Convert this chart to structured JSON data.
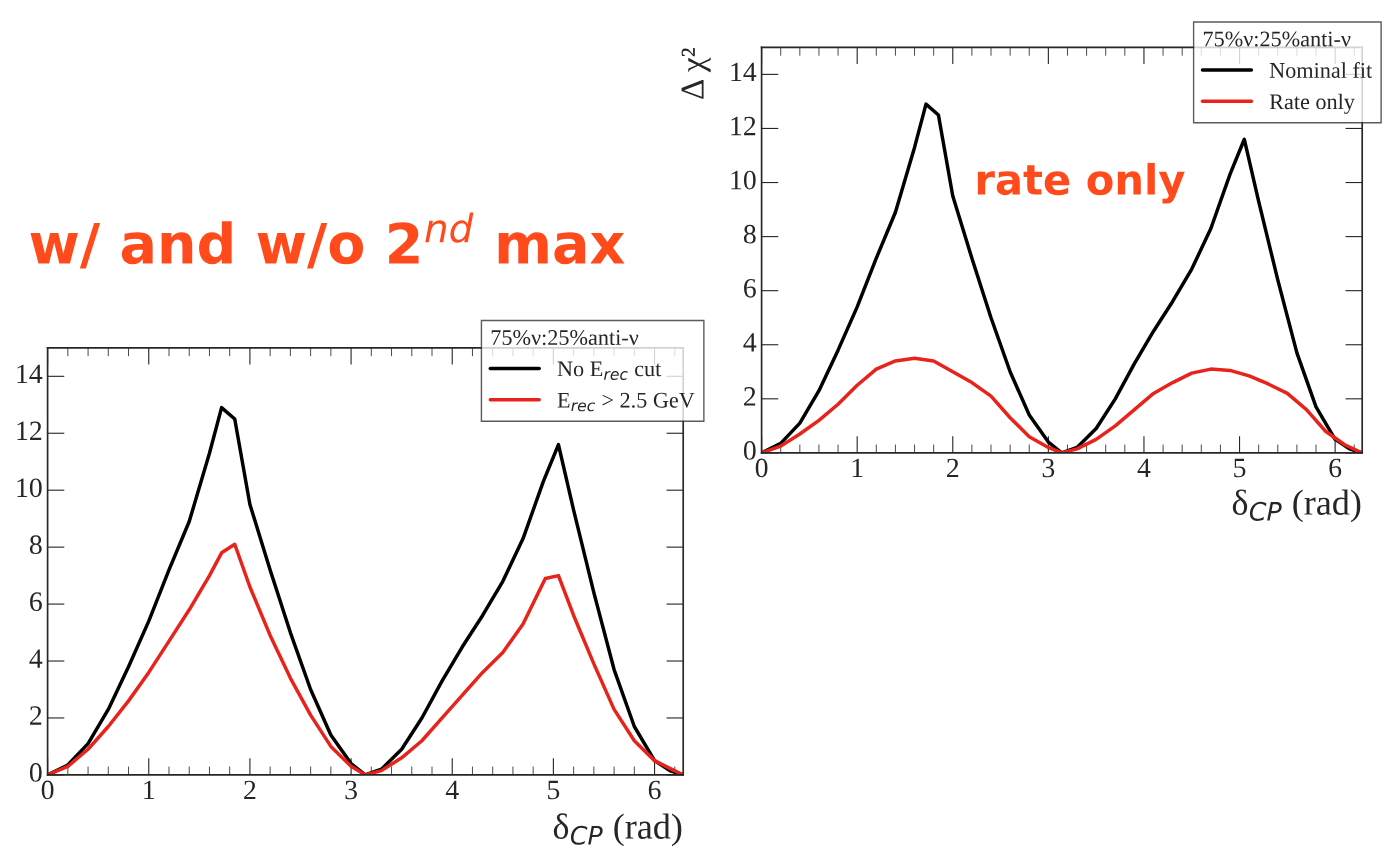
{
  "chart_data": [
    {
      "type": "line",
      "title": "w/ and w/o 2$^{nd}$ max",
      "xlabel": "δ$_{CP}$ (rad)",
      "legend_title": "75%ν:25%anti-ν",
      "legend": "top right",
      "xlim": [
        0,
        6.2832
      ],
      "xticks": [
        0,
        1,
        2,
        3,
        4,
        5,
        6
      ],
      "ylim": [
        0,
        15
      ],
      "yticks": [
        0,
        2,
        4,
        6,
        8,
        10,
        12,
        14
      ],
      "grid": false,
      "series": [
        {
          "name": "No E$_{rec}$ cut",
          "color": "#000000",
          "x": [
            0,
            0.2,
            0.4,
            0.6,
            0.8,
            1.0,
            1.2,
            1.4,
            1.6,
            1.72,
            1.85,
            2.0,
            2.2,
            2.4,
            2.6,
            2.8,
            3.0,
            3.14,
            3.3,
            3.5,
            3.7,
            3.9,
            4.1,
            4.3,
            4.5,
            4.7,
            4.9,
            5.05,
            5.2,
            5.4,
            5.6,
            5.8,
            6.0,
            6.15,
            6.28
          ],
          "values": [
            0,
            0.35,
            1.1,
            2.3,
            3.8,
            5.4,
            7.2,
            8.9,
            11.3,
            12.9,
            12.5,
            9.5,
            7.2,
            5.0,
            3.0,
            1.4,
            0.4,
            0,
            0.2,
            0.9,
            2.0,
            3.3,
            4.5,
            5.6,
            6.8,
            8.3,
            10.3,
            11.6,
            9.3,
            6.4,
            3.7,
            1.7,
            0.5,
            0.15,
            0
          ]
        },
        {
          "name": "E$_{rec}$ > 2.5 GeV",
          "color": "#e8231b",
          "x": [
            0,
            0.2,
            0.4,
            0.6,
            0.8,
            1.0,
            1.2,
            1.4,
            1.6,
            1.72,
            1.85,
            2.0,
            2.2,
            2.4,
            2.6,
            2.8,
            3.0,
            3.14,
            3.3,
            3.5,
            3.7,
            3.9,
            4.1,
            4.3,
            4.5,
            4.7,
            4.92,
            5.05,
            5.2,
            5.4,
            5.6,
            5.8,
            6.0,
            6.28
          ],
          "values": [
            0,
            0.3,
            0.9,
            1.7,
            2.6,
            3.6,
            4.7,
            5.8,
            7.0,
            7.8,
            8.1,
            6.6,
            4.9,
            3.4,
            2.1,
            1.0,
            0.3,
            0,
            0.15,
            0.6,
            1.2,
            2.0,
            2.8,
            3.6,
            4.3,
            5.3,
            6.9,
            7.0,
            5.6,
            3.9,
            2.3,
            1.2,
            0.5,
            0
          ]
        }
      ]
    },
    {
      "type": "line",
      "annotations": [
        "rate only"
      ],
      "ylabel": "Δ χ²",
      "xlabel": "δ$_{CP}$ (rad)",
      "legend_title": "75%ν:25%anti-ν",
      "legend": "top right",
      "xlim": [
        0,
        6.2832
      ],
      "xticks": [
        0,
        1,
        2,
        3,
        4,
        5,
        6
      ],
      "ylim": [
        0,
        15
      ],
      "yticks": [
        0,
        2,
        4,
        6,
        8,
        10,
        12,
        14
      ],
      "grid": false,
      "series": [
        {
          "name": "Nominal fit",
          "color": "#000000",
          "x": [
            0,
            0.2,
            0.4,
            0.6,
            0.8,
            1.0,
            1.2,
            1.4,
            1.6,
            1.72,
            1.85,
            2.0,
            2.2,
            2.4,
            2.6,
            2.8,
            3.0,
            3.14,
            3.3,
            3.5,
            3.7,
            3.9,
            4.1,
            4.3,
            4.5,
            4.7,
            4.9,
            5.05,
            5.2,
            5.4,
            5.6,
            5.8,
            6.0,
            6.15,
            6.28
          ],
          "values": [
            0,
            0.35,
            1.1,
            2.3,
            3.8,
            5.4,
            7.2,
            8.9,
            11.3,
            12.9,
            12.5,
            9.5,
            7.2,
            5.0,
            3.0,
            1.4,
            0.4,
            0,
            0.2,
            0.9,
            2.0,
            3.3,
            4.5,
            5.6,
            6.8,
            8.3,
            10.3,
            11.6,
            9.3,
            6.4,
            3.7,
            1.7,
            0.5,
            0.15,
            0
          ]
        },
        {
          "name": "Rate only",
          "color": "#e8231b",
          "x": [
            0,
            0.2,
            0.4,
            0.6,
            0.8,
            1.0,
            1.2,
            1.4,
            1.6,
            1.8,
            2.0,
            2.2,
            2.4,
            2.6,
            2.8,
            3.0,
            3.14,
            3.3,
            3.5,
            3.7,
            3.9,
            4.1,
            4.3,
            4.5,
            4.7,
            4.9,
            5.1,
            5.3,
            5.5,
            5.7,
            5.9,
            6.1,
            6.28
          ],
          "values": [
            0,
            0.25,
            0.7,
            1.2,
            1.8,
            2.5,
            3.1,
            3.4,
            3.5,
            3.4,
            3.0,
            2.6,
            2.1,
            1.3,
            0.6,
            0.2,
            0,
            0.15,
            0.5,
            1.0,
            1.6,
            2.2,
            2.6,
            2.95,
            3.1,
            3.05,
            2.85,
            2.55,
            2.2,
            1.6,
            0.8,
            0.3,
            0
          ]
        }
      ]
    }
  ]
}
